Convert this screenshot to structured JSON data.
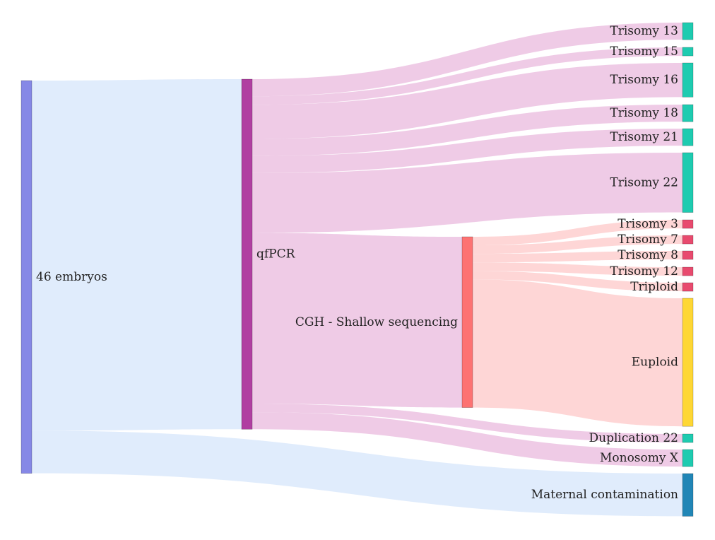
{
  "chart_data": {
    "type": "sankey",
    "title": "",
    "nodes": [
      {
        "id": "embryos",
        "label": "46 embryos",
        "color": "#8688e6"
      },
      {
        "id": "qfpcr",
        "label": "qfPCR",
        "color": "#b03fa1"
      },
      {
        "id": "cgh",
        "label": "CGH - Shallow sequencing",
        "color": "#fd7272"
      },
      {
        "id": "t13",
        "label": "Trisomy 13",
        "color": "#1ecbb0"
      },
      {
        "id": "t15",
        "label": "Trisomy 15",
        "color": "#1ecbb0"
      },
      {
        "id": "t16",
        "label": "Trisomy 16",
        "color": "#1ecbb0"
      },
      {
        "id": "t18",
        "label": "Trisomy 18",
        "color": "#1ecbb0"
      },
      {
        "id": "t21",
        "label": "Trisomy 21",
        "color": "#1ecbb0"
      },
      {
        "id": "t22",
        "label": "Trisomy 22",
        "color": "#1ecbb0"
      },
      {
        "id": "t3",
        "label": "Trisomy 3",
        "color": "#e84a6e"
      },
      {
        "id": "t7",
        "label": "Trisomy 7",
        "color": "#e84a6e"
      },
      {
        "id": "t8",
        "label": "Trisomy 8",
        "color": "#e84a6e"
      },
      {
        "id": "t12",
        "label": "Trisomy 12",
        "color": "#e84a6e"
      },
      {
        "id": "triploid",
        "label": "Triploid",
        "color": "#e84a6e"
      },
      {
        "id": "euploid",
        "label": "Euploid",
        "color": "#fed734"
      },
      {
        "id": "dup22",
        "label": "Duplication 22",
        "color": "#1ecbb0"
      },
      {
        "id": "monox",
        "label": "Monosomy X",
        "color": "#1ecbb0"
      },
      {
        "id": "maternal",
        "label": "Maternal contamination",
        "color": "#2186b6"
      }
    ],
    "links": [
      {
        "source": "embryos",
        "target": "qfpcr",
        "value": 41,
        "color": "#d6e6fb"
      },
      {
        "source": "embryos",
        "target": "maternal",
        "value": 5,
        "color": "#d6e6fb"
      },
      {
        "source": "qfpcr",
        "target": "t13",
        "value": 2,
        "color": "#e9b9dd"
      },
      {
        "source": "qfpcr",
        "target": "t15",
        "value": 1,
        "color": "#e9b9dd"
      },
      {
        "source": "qfpcr",
        "target": "t16",
        "value": 4,
        "color": "#e9b9dd"
      },
      {
        "source": "qfpcr",
        "target": "t18",
        "value": 2,
        "color": "#e9b9dd"
      },
      {
        "source": "qfpcr",
        "target": "t21",
        "value": 2,
        "color": "#e9b9dd"
      },
      {
        "source": "qfpcr",
        "target": "t22",
        "value": 7,
        "color": "#e9b9dd"
      },
      {
        "source": "qfpcr",
        "target": "cgh",
        "value": 20,
        "color": "#e9b9dd"
      },
      {
        "source": "qfpcr",
        "target": "dup22",
        "value": 1,
        "color": "#e9b9dd"
      },
      {
        "source": "qfpcr",
        "target": "monox",
        "value": 2,
        "color": "#e9b9dd"
      },
      {
        "source": "cgh",
        "target": "t3",
        "value": 1,
        "color": "#fdc8c8"
      },
      {
        "source": "cgh",
        "target": "t7",
        "value": 1,
        "color": "#fdc8c8"
      },
      {
        "source": "cgh",
        "target": "t8",
        "value": 1,
        "color": "#fdc8c8"
      },
      {
        "source": "cgh",
        "target": "t12",
        "value": 1,
        "color": "#fdc8c8"
      },
      {
        "source": "cgh",
        "target": "triploid",
        "value": 1,
        "color": "#fdc8c8"
      },
      {
        "source": "cgh",
        "target": "euploid",
        "value": 15,
        "color": "#fdc8c8"
      }
    ]
  }
}
